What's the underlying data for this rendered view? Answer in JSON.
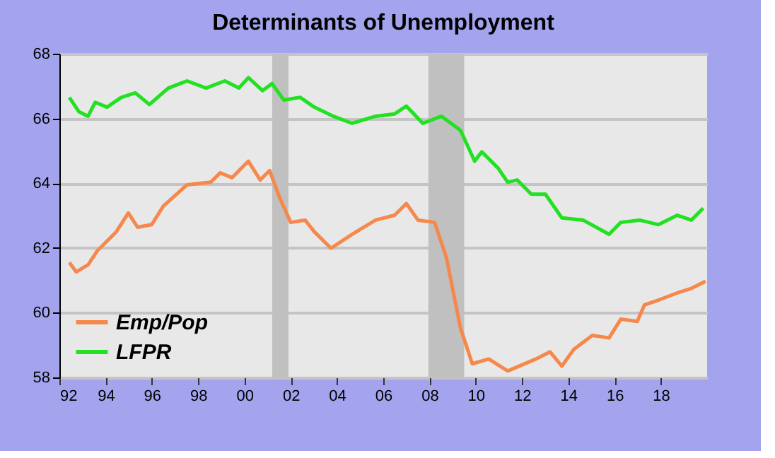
{
  "chart_data": {
    "type": "line",
    "title": "Determinants of Unemployment",
    "xlim": [
      1992,
      2020
    ],
    "ylim": [
      58,
      68
    ],
    "yticks": [
      58,
      60,
      62,
      64,
      66,
      68
    ],
    "xticks": [
      {
        "value": 1992,
        "label": "92"
      },
      {
        "value": 1994,
        "label": "94"
      },
      {
        "value": 1996,
        "label": "96"
      },
      {
        "value": 1998,
        "label": "98"
      },
      {
        "value": 2000,
        "label": "00"
      },
      {
        "value": 2002,
        "label": "02"
      },
      {
        "value": 2004,
        "label": "04"
      },
      {
        "value": 2006,
        "label": "06"
      },
      {
        "value": 2008,
        "label": "08"
      },
      {
        "value": 2010,
        "label": "10"
      },
      {
        "value": 2012,
        "label": "12"
      },
      {
        "value": 2014,
        "label": "14"
      },
      {
        "value": 2016,
        "label": "16"
      },
      {
        "value": 2018,
        "label": "18"
      }
    ],
    "grid": "y",
    "legend": "bottom left",
    "line_style": "solid",
    "bands": [
      {
        "axis": "x",
        "from": 2001.2,
        "to": 2001.9,
        "color": "#c0c0c0"
      },
      {
        "axis": "x",
        "from": 2007.95,
        "to": 2009.5,
        "color": "#c0c0c0"
      }
    ],
    "series": [
      {
        "name": "Emp/Pop",
        "color": "#f5884a",
        "x": [
          1992.43,
          1992.73,
          1993.24,
          1993.65,
          1994.46,
          1994.98,
          1995.38,
          1995.99,
          1996.5,
          1997.52,
          1998.54,
          1998.95,
          1999.46,
          2000.17,
          2000.68,
          2001.09,
          2001.5,
          2002.0,
          2002.62,
          2003.02,
          2003.74,
          2004.65,
          2005.67,
          2006.49,
          2007.0,
          2007.5,
          2008.22,
          2008.73,
          2009.34,
          2009.85,
          2010.56,
          2011.38,
          2012.6,
          2013.21,
          2013.72,
          2014.23,
          2015.04,
          2015.76,
          2016.27,
          2016.98,
          2017.29,
          2017.9,
          2018.71,
          2019.32,
          2019.93
        ],
        "values": [
          61.55,
          61.26,
          61.48,
          61.92,
          62.5,
          63.08,
          62.64,
          62.72,
          63.3,
          63.95,
          64.03,
          64.32,
          64.17,
          64.68,
          64.1,
          64.39,
          63.59,
          62.79,
          62.86,
          62.5,
          61.99,
          62.42,
          62.86,
          63.01,
          63.37,
          62.86,
          62.79,
          61.7,
          59.52,
          58.42,
          58.57,
          58.2,
          58.57,
          58.79,
          58.35,
          58.86,
          59.3,
          59.22,
          59.8,
          59.73,
          60.24,
          60.39,
          60.61,
          60.75,
          60.97
        ]
      },
      {
        "name": "LFPR",
        "color": "#22e022",
        "x": [
          1992.43,
          1992.84,
          1993.24,
          1993.55,
          1994.06,
          1994.67,
          1995.28,
          1995.89,
          1996.71,
          1997.52,
          1998.34,
          1999.15,
          1999.76,
          2000.17,
          2000.78,
          2001.19,
          2001.7,
          2002.41,
          2003.02,
          2003.84,
          2004.65,
          2005.67,
          2006.49,
          2007.0,
          2007.71,
          2008.52,
          2009.34,
          2009.95,
          2010.26,
          2010.97,
          2011.38,
          2011.79,
          2012.4,
          2013.01,
          2013.72,
          2014.64,
          2015.76,
          2016.27,
          2017.08,
          2017.9,
          2018.71,
          2019.32,
          2019.83
        ],
        "values": [
          66.65,
          66.21,
          66.07,
          66.5,
          66.35,
          66.65,
          66.79,
          66.43,
          66.94,
          67.16,
          66.94,
          67.16,
          66.94,
          67.26,
          66.86,
          67.08,
          66.57,
          66.65,
          66.35,
          66.07,
          65.85,
          66.07,
          66.14,
          66.38,
          65.85,
          66.07,
          65.63,
          64.68,
          64.97,
          64.46,
          64.03,
          64.1,
          63.66,
          63.66,
          62.93,
          62.86,
          62.42,
          62.79,
          62.86,
          62.72,
          63.01,
          62.86,
          63.23
        ]
      }
    ]
  }
}
